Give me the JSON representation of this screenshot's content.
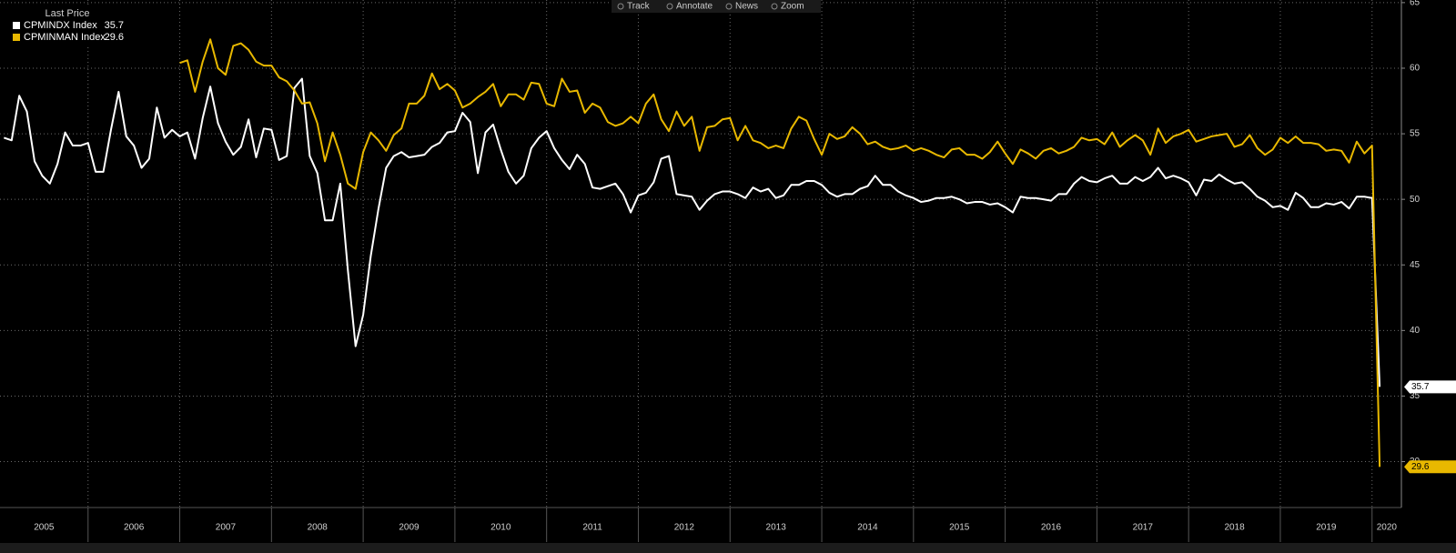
{
  "toolbar": [
    "Track",
    "Annotate",
    "News",
    "Zoom"
  ],
  "chart_data": {
    "type": "line",
    "legend_title": "Last Price",
    "legend_position": "upper-left",
    "grid": true,
    "xlim": [
      2005.04,
      2020.32
    ],
    "xticks": [
      2005,
      2006,
      2007,
      2008,
      2009,
      2010,
      2011,
      2012,
      2013,
      2014,
      2015,
      2016,
      2017,
      2018,
      2019,
      2020
    ],
    "ylim": [
      26.5,
      65.2
    ],
    "yticks": [
      30,
      35,
      40,
      45,
      50,
      55,
      60,
      65
    ],
    "x": [
      2005.083,
      2005.167,
      2005.25,
      2005.333,
      2005.417,
      2005.5,
      2005.583,
      2005.667,
      2005.75,
      2005.833,
      2005.917,
      2006,
      2006.083,
      2006.167,
      2006.25,
      2006.333,
      2006.417,
      2006.5,
      2006.583,
      2006.667,
      2006.75,
      2006.833,
      2006.917,
      2007,
      2007.083,
      2007.167,
      2007.25,
      2007.333,
      2007.417,
      2007.5,
      2007.583,
      2007.667,
      2007.75,
      2007.833,
      2007.917,
      2008,
      2008.083,
      2008.167,
      2008.25,
      2008.333,
      2008.417,
      2008.5,
      2008.583,
      2008.667,
      2008.75,
      2008.833,
      2008.917,
      2009,
      2009.083,
      2009.167,
      2009.25,
      2009.333,
      2009.417,
      2009.5,
      2009.583,
      2009.667,
      2009.75,
      2009.833,
      2009.917,
      2010,
      2010.083,
      2010.167,
      2010.25,
      2010.333,
      2010.417,
      2010.5,
      2010.583,
      2010.667,
      2010.75,
      2010.833,
      2010.917,
      2011,
      2011.083,
      2011.167,
      2011.25,
      2011.333,
      2011.417,
      2011.5,
      2011.583,
      2011.667,
      2011.75,
      2011.833,
      2011.917,
      2012,
      2012.083,
      2012.167,
      2012.25,
      2012.333,
      2012.417,
      2012.5,
      2012.583,
      2012.667,
      2012.75,
      2012.833,
      2012.917,
      2013,
      2013.083,
      2013.167,
      2013.25,
      2013.333,
      2013.417,
      2013.5,
      2013.583,
      2013.667,
      2013.75,
      2013.833,
      2013.917,
      2014,
      2014.083,
      2014.167,
      2014.25,
      2014.333,
      2014.417,
      2014.5,
      2014.583,
      2014.667,
      2014.75,
      2014.833,
      2014.917,
      2015,
      2015.083,
      2015.167,
      2015.25,
      2015.333,
      2015.417,
      2015.5,
      2015.583,
      2015.667,
      2015.75,
      2015.833,
      2015.917,
      2016,
      2016.083,
      2016.167,
      2016.25,
      2016.333,
      2016.417,
      2016.5,
      2016.583,
      2016.667,
      2016.75,
      2016.833,
      2016.917,
      2017,
      2017.083,
      2017.167,
      2017.25,
      2017.333,
      2017.417,
      2017.5,
      2017.583,
      2017.667,
      2017.75,
      2017.833,
      2017.917,
      2018,
      2018.083,
      2018.167,
      2018.25,
      2018.333,
      2018.417,
      2018.5,
      2018.583,
      2018.667,
      2018.75,
      2018.833,
      2018.917,
      2019,
      2019.083,
      2019.167,
      2019.25,
      2019.333,
      2019.417,
      2019.5,
      2019.583,
      2019.667,
      2019.75,
      2019.833,
      2019.917,
      2020,
      2020.083
    ],
    "series": [
      {
        "name": "CPMINDX Index",
        "color": "#ffffff",
        "values": [
          54.7,
          54.5,
          57.9,
          56.7,
          52.9,
          51.8,
          51.2,
          52.7,
          55.1,
          54.1,
          54.1,
          54.3,
          52.1,
          52.1,
          55.3,
          58.2,
          54.8,
          54.1,
          52.4,
          53.1,
          57.0,
          54.7,
          55.3,
          54.8,
          55.1,
          53.1,
          56.2,
          58.6,
          55.8,
          54.4,
          53.4,
          54.0,
          56.1,
          53.2,
          55.4,
          55.3,
          53.0,
          53.3,
          58.5,
          59.2,
          53.3,
          52.0,
          48.4,
          48.4,
          51.2,
          44.6,
          38.8,
          41.2,
          45.7,
          49.3,
          52.4,
          53.3,
          53.6,
          53.2,
          53.3,
          53.4,
          54.0,
          54.3,
          55.1,
          55.2,
          56.6,
          55.9,
          52.0,
          55.1,
          55.7,
          53.8,
          52.1,
          51.2,
          51.8,
          53.9,
          54.7,
          55.2,
          53.9,
          53.0,
          52.3,
          53.4,
          52.7,
          50.9,
          50.8,
          51.0,
          51.2,
          50.4,
          49.0,
          50.3,
          50.5,
          51.3,
          53.1,
          53.3,
          50.4,
          50.3,
          50.2,
          49.2,
          49.9,
          50.4,
          50.6,
          50.6,
          50.4,
          50.1,
          50.9,
          50.6,
          50.8,
          50.1,
          50.3,
          51.1,
          51.1,
          51.4,
          51.4,
          51.1,
          50.5,
          50.2,
          50.4,
          50.4,
          50.8,
          51.0,
          51.8,
          51.1,
          51.1,
          50.6,
          50.3,
          50.1,
          49.8,
          49.9,
          50.1,
          50.1,
          50.2,
          50.0,
          49.7,
          49.8,
          49.8,
          49.6,
          49.7,
          49.4,
          49.0,
          50.2,
          50.1,
          50.1,
          50.0,
          49.9,
          50.4,
          50.4,
          51.2,
          51.7,
          51.4,
          51.3,
          51.6,
          51.8,
          51.2,
          51.2,
          51.7,
          51.4,
          51.7,
          52.4,
          51.6,
          51.8,
          51.6,
          51.3,
          50.3,
          51.5,
          51.4,
          51.9,
          51.5,
          51.2,
          51.3,
          50.8,
          50.2,
          49.9,
          49.4,
          49.5,
          49.2,
          50.5,
          50.1,
          49.4,
          49.4,
          49.7,
          49.6,
          49.8,
          49.3,
          50.2,
          50.2,
          50.1,
          35.7
        ]
      },
      {
        "name": "CPMINMAN Index",
        "color": "#e8b800",
        "values": [
          null,
          null,
          null,
          null,
          null,
          null,
          null,
          null,
          null,
          null,
          null,
          null,
          null,
          null,
          null,
          null,
          null,
          null,
          null,
          null,
          null,
          null,
          null,
          60.4,
          60.6,
          58.2,
          60.5,
          62.2,
          60.0,
          59.5,
          61.7,
          61.9,
          61.4,
          60.5,
          60.2,
          60.2,
          59.3,
          59.0,
          58.3,
          57.3,
          57.4,
          55.8,
          52.9,
          55.1,
          53.4,
          51.2,
          50.8,
          53.6,
          55.1,
          54.5,
          53.7,
          54.9,
          55.4,
          57.3,
          57.3,
          57.9,
          59.6,
          58.4,
          58.8,
          58.3,
          57.0,
          57.3,
          57.8,
          58.2,
          58.8,
          57.1,
          58.0,
          58.0,
          57.6,
          58.9,
          58.8,
          57.3,
          57.1,
          59.2,
          58.2,
          58.3,
          56.6,
          57.3,
          57.0,
          55.9,
          55.6,
          55.8,
          56.3,
          55.8,
          57.3,
          58.0,
          56.1,
          55.2,
          56.7,
          55.6,
          56.3,
          53.7,
          55.5,
          55.6,
          56.1,
          56.2,
          54.5,
          55.6,
          54.5,
          54.3,
          53.9,
          54.1,
          53.9,
          55.4,
          56.3,
          56.0,
          54.6,
          53.4,
          55.0,
          54.6,
          54.8,
          55.5,
          55.0,
          54.2,
          54.4,
          54.0,
          53.8,
          53.9,
          54.1,
          53.7,
          53.9,
          53.7,
          53.4,
          53.2,
          53.8,
          53.9,
          53.4,
          53.4,
          53.1,
          53.6,
          54.4,
          53.5,
          52.7,
          53.8,
          53.5,
          53.1,
          53.7,
          53.9,
          53.5,
          53.7,
          54.0,
          54.7,
          54.5,
          54.6,
          54.2,
          55.1,
          54.0,
          54.5,
          54.9,
          54.5,
          53.4,
          55.4,
          54.3,
          54.8,
          55.0,
          55.3,
          54.4,
          54.6,
          54.8,
          54.9,
          55.0,
          54.0,
          54.2,
          54.9,
          53.9,
          53.4,
          53.8,
          54.7,
          54.3,
          54.8,
          54.3,
          54.3,
          54.2,
          53.7,
          53.8,
          53.7,
          52.8,
          54.4,
          53.5,
          54.1,
          29.6
        ]
      }
    ]
  }
}
